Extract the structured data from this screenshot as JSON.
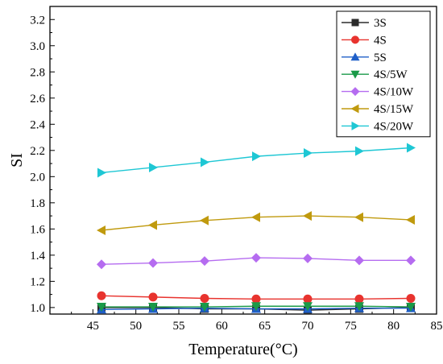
{
  "chart_data": {
    "type": "line",
    "xlabel": "Temperature(°C)",
    "ylabel": "SI",
    "xlim": [
      40,
      85
    ],
    "ylim": [
      0.95,
      3.3
    ],
    "xticks": [
      45,
      50,
      55,
      60,
      65,
      70,
      75,
      80,
      85
    ],
    "yticks": [
      1.0,
      1.2,
      1.4,
      1.6,
      1.8,
      2.0,
      2.2,
      2.4,
      2.6,
      2.8,
      3.0,
      3.2
    ],
    "x": [
      46,
      52,
      58,
      64,
      70,
      76,
      82
    ],
    "legend_position": "top-right",
    "grid": false,
    "series": [
      {
        "name": "3S",
        "color": "#2b2b2b",
        "marker": "square",
        "values": [
          1.0,
          1.0,
          0.99,
          0.99,
          0.98,
          0.99,
          1.0
        ]
      },
      {
        "name": "4S",
        "color": "#e8332e",
        "marker": "circle",
        "values": [
          1.09,
          1.08,
          1.07,
          1.065,
          1.065,
          1.065,
          1.07
        ]
      },
      {
        "name": "5S",
        "color": "#1f5fc8",
        "marker": "triangle-up",
        "values": [
          0.985,
          0.99,
          0.995,
          0.99,
          0.99,
          0.995,
          0.995
        ]
      },
      {
        "name": "4S/5W",
        "color": "#1a9a48",
        "marker": "triangle-down",
        "values": [
          1.005,
          1.005,
          1.005,
          1.01,
          1.01,
          1.01,
          1.005
        ]
      },
      {
        "name": "4S/10W",
        "color": "#b56cf0",
        "marker": "diamond",
        "values": [
          1.33,
          1.34,
          1.355,
          1.38,
          1.375,
          1.36,
          1.36
        ]
      },
      {
        "name": "4S/15W",
        "color": "#c09a0e",
        "marker": "triangle-left",
        "values": [
          1.59,
          1.63,
          1.665,
          1.69,
          1.7,
          1.69,
          1.67
        ]
      },
      {
        "name": "4S/20W",
        "color": "#1ec7d4",
        "marker": "triangle-right",
        "values": [
          2.03,
          2.07,
          2.11,
          2.155,
          2.18,
          2.195,
          2.22
        ]
      }
    ]
  }
}
